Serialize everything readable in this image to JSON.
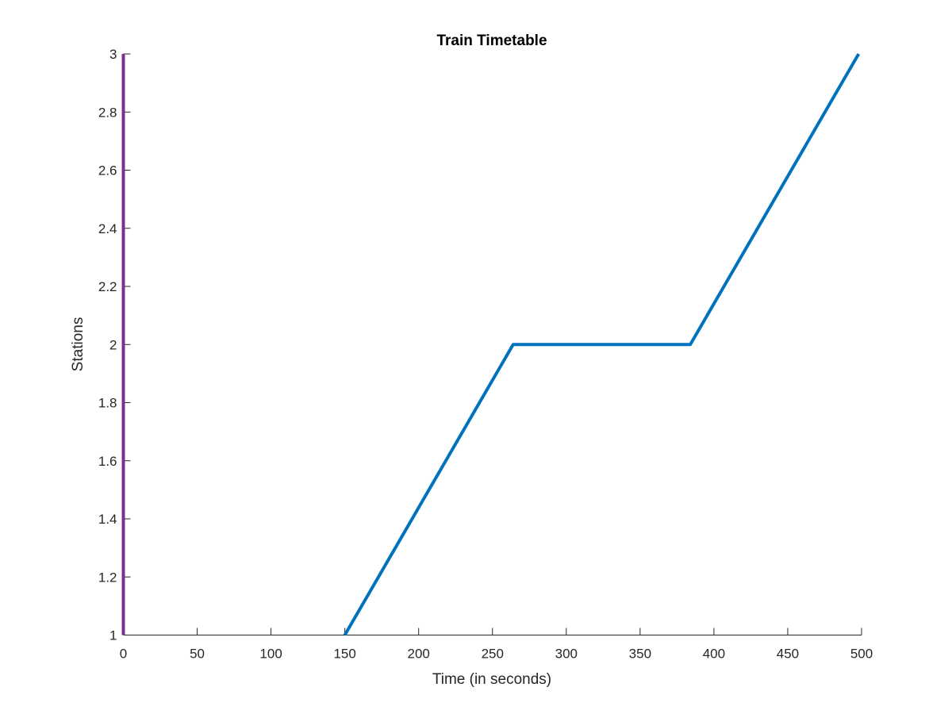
{
  "chart_data": {
    "type": "line",
    "title": "Train Timetable",
    "xlabel": "Time (in seconds)",
    "ylabel": "Stations",
    "xlim": [
      0,
      500
    ],
    "ylim": [
      1,
      3
    ],
    "xticks": [
      0,
      50,
      100,
      150,
      200,
      250,
      300,
      350,
      400,
      450,
      500
    ],
    "yticks": [
      1,
      1.2,
      1.4,
      1.6,
      1.8,
      2,
      2.2,
      2.4,
      2.6,
      2.8,
      3
    ],
    "xtick_labels": [
      "0",
      "50",
      "100",
      "150",
      "200",
      "250",
      "300",
      "350",
      "400",
      "450",
      "500"
    ],
    "ytick_labels": [
      "1",
      "1.2",
      "1.4",
      "1.6",
      "1.8",
      "2",
      "2.2",
      "2.4",
      "2.6",
      "2.8",
      "3"
    ],
    "grid": false,
    "series": [
      {
        "color": "#0072BD",
        "x": [
          150,
          264,
          384,
          498
        ],
        "y": [
          1,
          2,
          2,
          3
        ]
      },
      {
        "color": "#7E2F8E",
        "x": [
          0,
          0
        ],
        "y": [
          1,
          3
        ]
      }
    ]
  }
}
